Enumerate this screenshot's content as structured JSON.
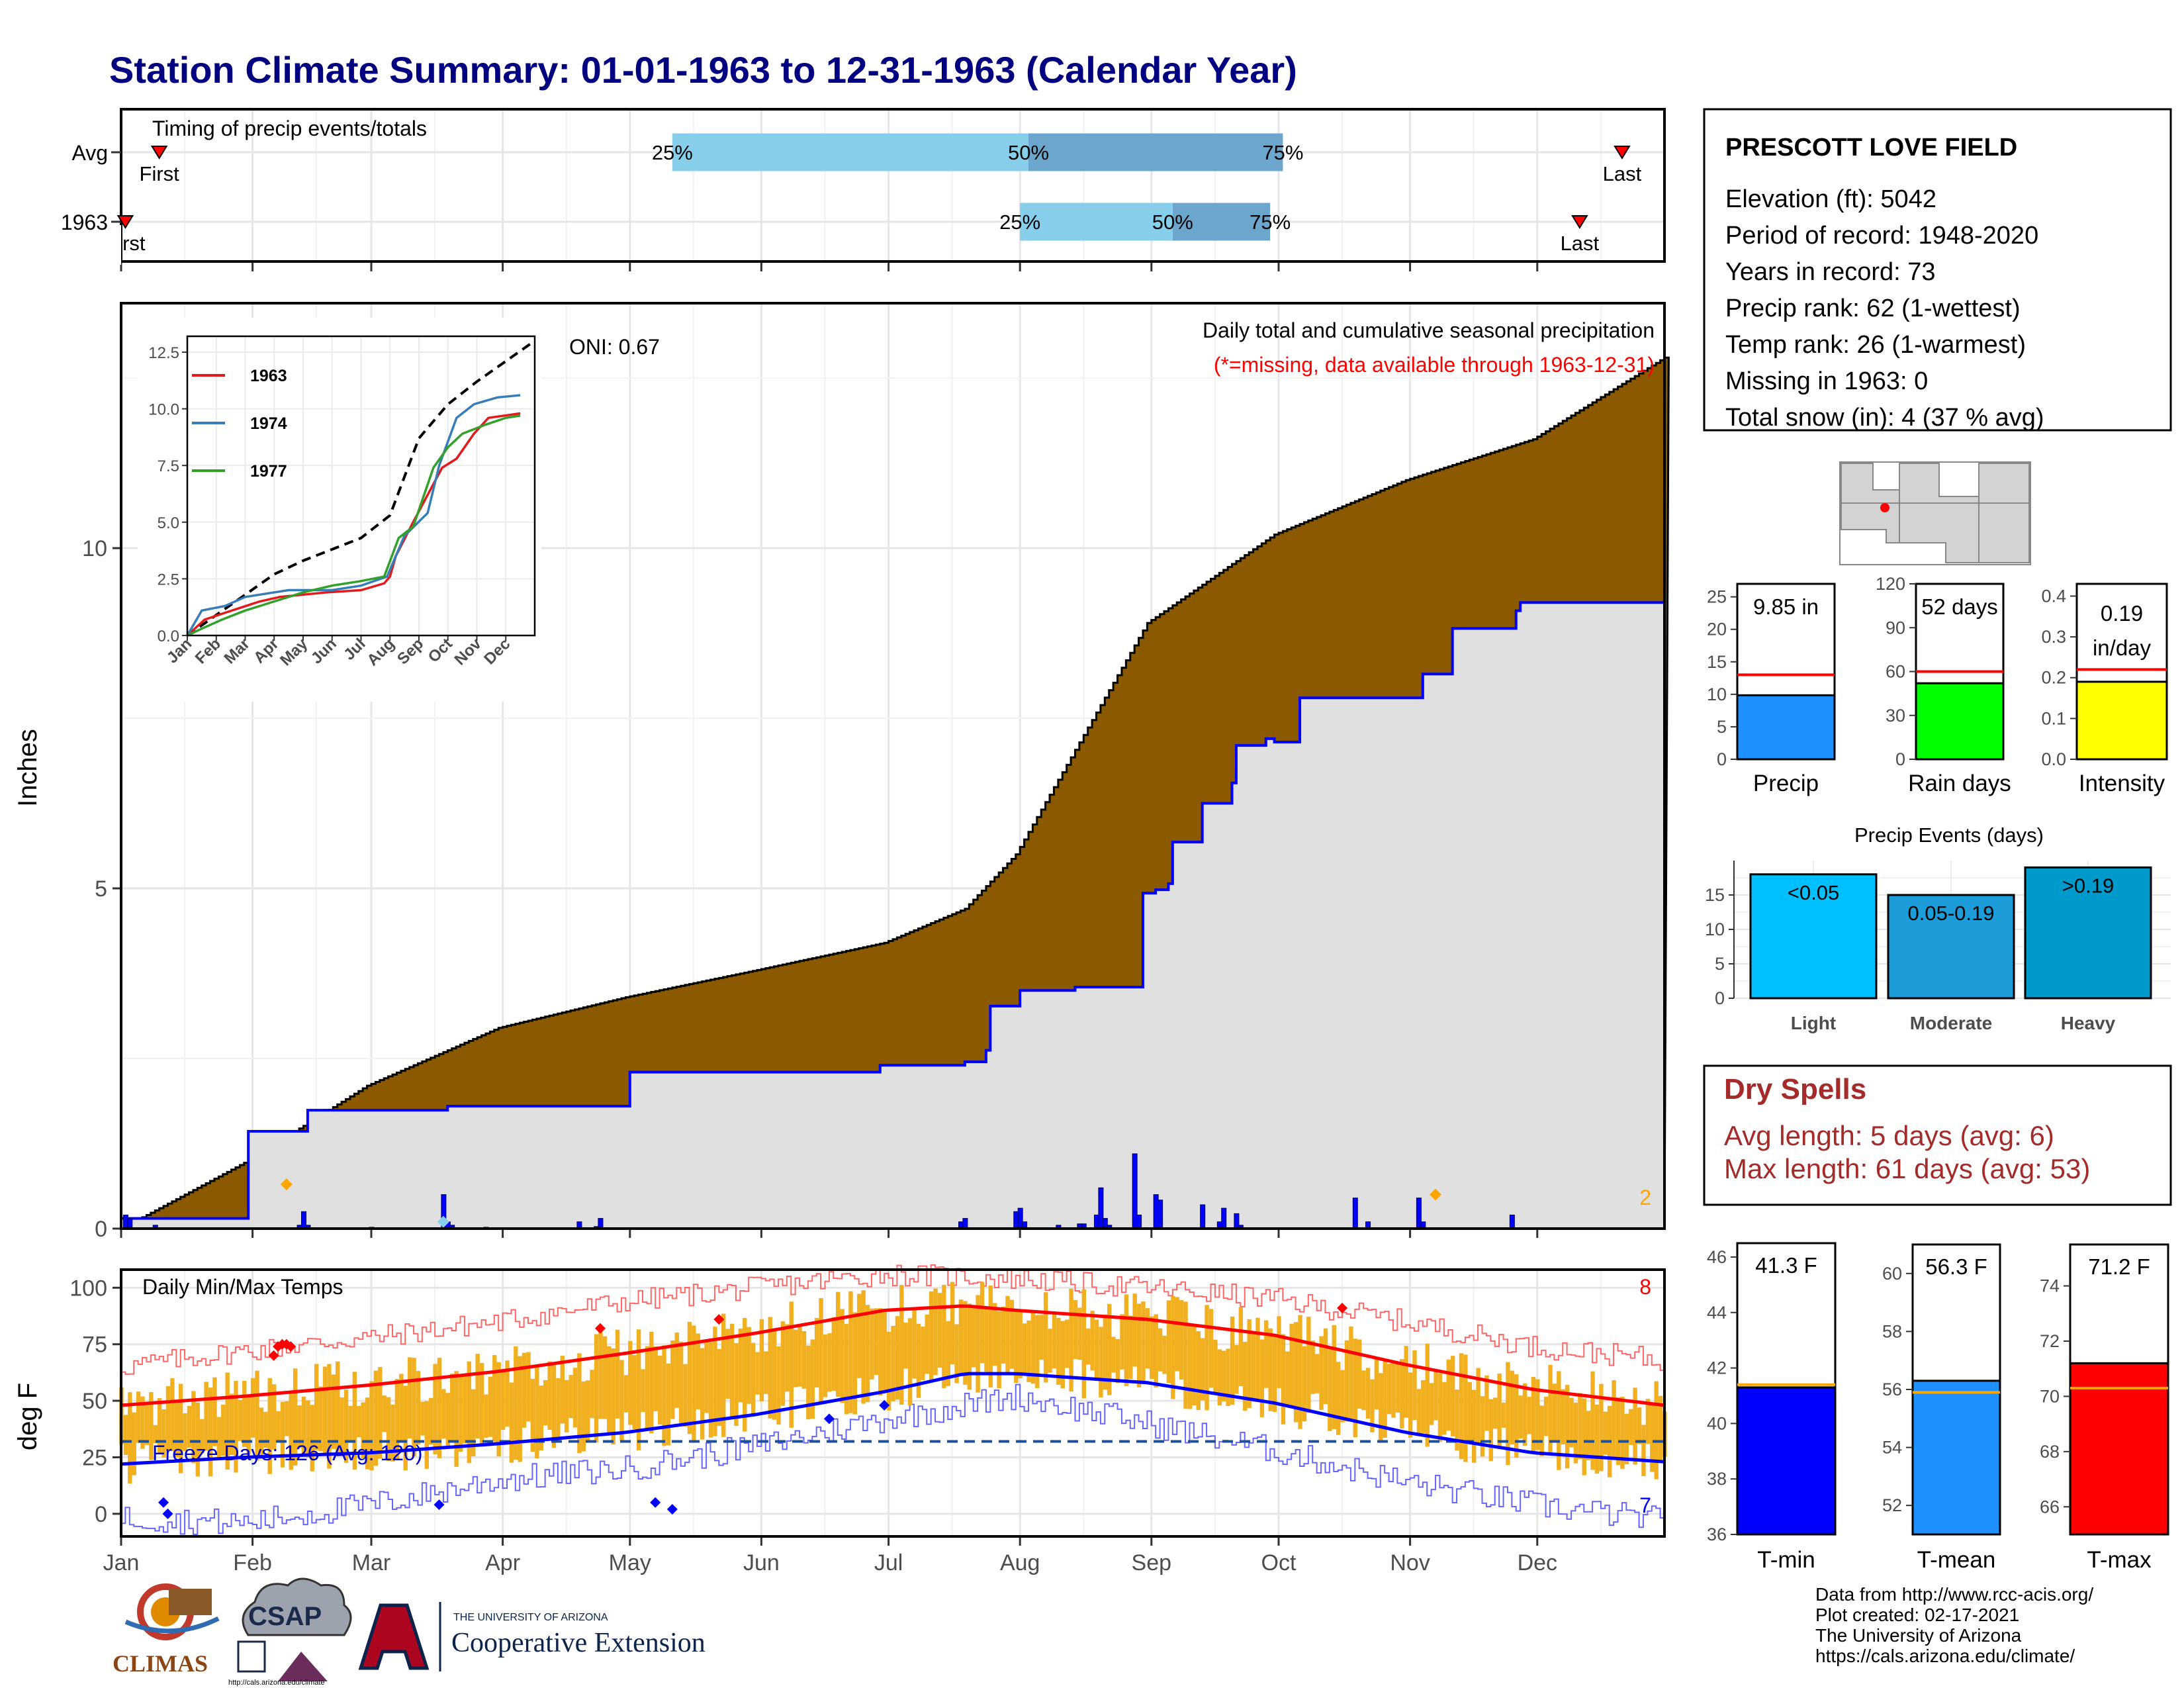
{
  "title": "Station Climate Summary: 01-01-1963 to 12-31-1963 (Calendar Year)",
  "months": [
    "Jan",
    "Feb",
    "Mar",
    "Apr",
    "May",
    "Jun",
    "Jul",
    "Aug",
    "Sep",
    "Oct",
    "Nov",
    "Dec"
  ],
  "colors": {
    "title": "#000080",
    "brown": "#8B5A00",
    "gray_fill": "#E0E0E0",
    "blue_line": "#0000FF",
    "red": "#FF0000",
    "orange_dot": "#FFA500",
    "temp_bar": "#F0B020",
    "light_blue": "#87CEEB",
    "mid_blue": "#6CA6CD",
    "dry_red": "#A52A2A"
  },
  "timing_panel": {
    "heading": "Timing of precip events/totals",
    "rows": [
      {
        "label": "Avg",
        "first": "First",
        "last": "Last",
        "p25": "25%",
        "p50": "50%",
        "p75": "75%"
      },
      {
        "label": "1963",
        "first": "First",
        "last": "Last",
        "p25": "25%",
        "p50": "50%",
        "p75": "75%"
      }
    ],
    "chart_data": {
      "type": "bar",
      "x_units": "day of year",
      "series": [
        {
          "name": "Avg",
          "first": 10,
          "p25": 131,
          "p50": 215,
          "p75": 275,
          "last": 355
        },
        {
          "name": "1963",
          "first": 2,
          "p25": 213,
          "p50": 249,
          "p75": 272,
          "last": 345
        }
      ]
    }
  },
  "precip_panel": {
    "ylabel": "Inches",
    "oni": "ONI: 0.67",
    "caption": "Daily total and cumulative seasonal precipitation",
    "missing_note": "(*=missing, data available through 1963-12-31)",
    "corner_count": "2",
    "y_ticks": [
      "0",
      "5",
      "10"
    ],
    "chart_data": {
      "type": "area",
      "x_units": "day of year",
      "ylim": [
        0,
        13.6
      ],
      "observed_cumulative": [
        [
          1,
          0.15
        ],
        [
          31,
          1.43
        ],
        [
          32,
          1.43
        ],
        [
          44,
          1.43
        ],
        [
          45,
          1.74
        ],
        [
          59,
          1.74
        ],
        [
          77,
          1.74
        ],
        [
          78,
          1.8
        ],
        [
          95,
          1.8
        ],
        [
          120,
          1.8
        ],
        [
          121,
          2.3
        ],
        [
          180,
          2.4
        ],
        [
          200,
          2.45
        ],
        [
          205,
          2.62
        ],
        [
          206,
          3.27
        ],
        [
          212,
          3.27
        ],
        [
          213,
          3.5
        ],
        [
          226,
          3.55
        ],
        [
          241,
          3.55
        ],
        [
          242,
          4.93
        ],
        [
          245,
          4.98
        ],
        [
          248,
          5.07
        ],
        [
          249,
          5.68
        ],
        [
          255,
          5.68
        ],
        [
          256,
          6.25
        ],
        [
          263,
          6.55
        ],
        [
          264,
          7.1
        ],
        [
          271,
          7.2
        ],
        [
          273,
          7.15
        ],
        [
          279,
          7.8
        ],
        [
          307,
          7.8
        ],
        [
          308,
          8.15
        ],
        [
          315,
          8.82
        ],
        [
          330,
          9.08
        ],
        [
          331,
          9.2
        ],
        [
          365,
          9.82
        ]
      ],
      "average_cumulative": [
        [
          1,
          0.0
        ],
        [
          31,
          1.0
        ],
        [
          59,
          2.1
        ],
        [
          90,
          2.95
        ],
        [
          120,
          3.4
        ],
        [
          151,
          3.8
        ],
        [
          181,
          4.2
        ],
        [
          200,
          4.7
        ],
        [
          212,
          5.5
        ],
        [
          243,
          8.9
        ],
        [
          273,
          10.2
        ],
        [
          304,
          11.0
        ],
        [
          334,
          11.6
        ],
        [
          365,
          12.8
        ]
      ],
      "daily_bars": [
        [
          2,
          0.2
        ],
        [
          3,
          0.15
        ],
        [
          9,
          0.05
        ],
        [
          43,
          0.05
        ],
        [
          44,
          0.25
        ],
        [
          45,
          0.05
        ],
        [
          60,
          0.02
        ],
        [
          77,
          0.5
        ],
        [
          78,
          0.1
        ],
        [
          79,
          0.05
        ],
        [
          87,
          0.02
        ],
        [
          109,
          0.1
        ],
        [
          113,
          0.03
        ],
        [
          114,
          0.15
        ],
        [
          199,
          0.1
        ],
        [
          200,
          0.15
        ],
        [
          212,
          0.25
        ],
        [
          213,
          0.3
        ],
        [
          214,
          0.1
        ],
        [
          222,
          0.05
        ],
        [
          227,
          0.07
        ],
        [
          228,
          0.07
        ],
        [
          231,
          0.2
        ],
        [
          232,
          0.6
        ],
        [
          233,
          0.15
        ],
        [
          234,
          0.05
        ],
        [
          240,
          1.1
        ],
        [
          241,
          0.2
        ],
        [
          245,
          0.5
        ],
        [
          246,
          0.42
        ],
        [
          256,
          0.35
        ],
        [
          260,
          0.1
        ],
        [
          261,
          0.3
        ],
        [
          264,
          0.22
        ],
        [
          265,
          0.05
        ],
        [
          292,
          0.45
        ],
        [
          295,
          0.1
        ],
        [
          307,
          0.45
        ],
        [
          308,
          0.1
        ],
        [
          329,
          0.2
        ]
      ],
      "markers": [
        [
          40,
          0.65,
          "orange"
        ],
        [
          77,
          0.1,
          "lightblue"
        ],
        [
          311,
          0.5,
          "orange"
        ]
      ]
    }
  },
  "inset_panel": {
    "y_ticks": [
      "0.0",
      "2.5",
      "5.0",
      "7.5",
      "10.0",
      "12.5"
    ],
    "x_ticks": [
      "Jan",
      "Feb",
      "Mar",
      "Apr",
      "May",
      "Jun",
      "Jul",
      "Aug",
      "Sep",
      "Oct",
      "Nov",
      "Dec"
    ],
    "legend": [
      {
        "name": "1963",
        "color": "#E31A1C"
      },
      {
        "name": "1974",
        "color": "#377EB8"
      },
      {
        "name": "1977",
        "color": "#33A02C"
      }
    ],
    "chart_data": {
      "type": "line",
      "x_units": "month (1=Jan)",
      "ylim": [
        0,
        13
      ],
      "series": [
        {
          "name": "average",
          "style": "dashed",
          "color": "#000000",
          "points": [
            [
              1,
              0.0
            ],
            [
              2,
              0.9
            ],
            [
              3,
              1.8
            ],
            [
              4,
              2.7
            ],
            [
              5,
              3.3
            ],
            [
              6,
              3.8
            ],
            [
              7,
              4.3
            ],
            [
              8,
              5.3
            ],
            [
              9,
              8.7
            ],
            [
              10,
              10.2
            ],
            [
              11,
              11.2
            ],
            [
              12,
              12.1
            ],
            [
              13,
              13.0
            ]
          ]
        },
        {
          "name": "1963",
          "color": "#E31A1C",
          "points": [
            [
              1,
              0.0
            ],
            [
              1.6,
              0.7
            ],
            [
              2.3,
              1.0
            ],
            [
              3.5,
              1.5
            ],
            [
              4.2,
              1.7
            ],
            [
              5.8,
              1.9
            ],
            [
              7.0,
              2.0
            ],
            [
              7.8,
              2.3
            ],
            [
              8.0,
              2.6
            ],
            [
              8.2,
              3.5
            ],
            [
              8.8,
              5.0
            ],
            [
              9.3,
              6.2
            ],
            [
              9.8,
              7.4
            ],
            [
              10.3,
              7.8
            ],
            [
              10.9,
              8.9
            ],
            [
              11.4,
              9.6
            ],
            [
              12.5,
              9.8
            ]
          ]
        },
        {
          "name": "1974",
          "color": "#377EB8",
          "points": [
            [
              1,
              0.0
            ],
            [
              1.5,
              1.1
            ],
            [
              2.3,
              1.3
            ],
            [
              3.0,
              1.7
            ],
            [
              4.5,
              2.0
            ],
            [
              6.0,
              2.0
            ],
            [
              7.0,
              2.2
            ],
            [
              7.9,
              2.6
            ],
            [
              8.5,
              4.4
            ],
            [
              9.3,
              5.4
            ],
            [
              9.7,
              7.5
            ],
            [
              10.3,
              9.6
            ],
            [
              10.9,
              10.2
            ],
            [
              11.7,
              10.5
            ],
            [
              12.5,
              10.6
            ]
          ]
        },
        {
          "name": "1977",
          "color": "#33A02C",
          "points": [
            [
              1,
              0.0
            ],
            [
              1.5,
              0.3
            ],
            [
              2.2,
              0.7
            ],
            [
              3.0,
              1.1
            ],
            [
              4.0,
              1.5
            ],
            [
              5.0,
              1.9
            ],
            [
              6.0,
              2.2
            ],
            [
              7.0,
              2.4
            ],
            [
              7.8,
              2.6
            ],
            [
              8.3,
              4.3
            ],
            [
              8.8,
              4.8
            ],
            [
              9.5,
              7.4
            ],
            [
              10.0,
              8.3
            ],
            [
              10.5,
              8.9
            ],
            [
              11.3,
              9.3
            ],
            [
              12.0,
              9.6
            ],
            [
              12.5,
              9.7
            ]
          ]
        }
      ]
    }
  },
  "temp_panel": {
    "ylabel": "deg F",
    "heading": "Daily Min/Max Temps",
    "freeze_text": "Freeze Days: 126 (Avg: 120)",
    "count_top": "8",
    "count_bottom": "7",
    "y_ticks": [
      "0",
      "25",
      "50",
      "75",
      "100"
    ],
    "chart_data": {
      "type": "line",
      "x_units": "day of year",
      "ylim": [
        -10,
        108
      ],
      "freeze_line": 32,
      "avg_max": [
        [
          1,
          48
        ],
        [
          30,
          52
        ],
        [
          60,
          57
        ],
        [
          90,
          63
        ],
        [
          120,
          71
        ],
        [
          151,
          80
        ],
        [
          181,
          90
        ],
        [
          200,
          92
        ],
        [
          212,
          90
        ],
        [
          243,
          86
        ],
        [
          273,
          79
        ],
        [
          304,
          66
        ],
        [
          334,
          55
        ],
        [
          365,
          48
        ]
      ],
      "avg_min": [
        [
          1,
          22
        ],
        [
          30,
          25
        ],
        [
          60,
          27
        ],
        [
          90,
          31
        ],
        [
          120,
          36
        ],
        [
          151,
          44
        ],
        [
          181,
          54
        ],
        [
          200,
          62
        ],
        [
          212,
          62
        ],
        [
          243,
          58
        ],
        [
          273,
          49
        ],
        [
          304,
          36
        ],
        [
          334,
          27
        ],
        [
          365,
          23
        ]
      ],
      "record_high": [
        [
          1,
          65
        ],
        [
          30,
          72
        ],
        [
          60,
          78
        ],
        [
          90,
          85
        ],
        [
          120,
          94
        ],
        [
          151,
          100
        ],
        [
          181,
          106
        ],
        [
          212,
          104
        ],
        [
          243,
          100
        ],
        [
          273,
          95
        ],
        [
          304,
          85
        ],
        [
          334,
          74
        ],
        [
          365,
          68
        ]
      ],
      "record_low": [
        [
          1,
          -2
        ],
        [
          30,
          -4
        ],
        [
          60,
          4
        ],
        [
          90,
          15
        ],
        [
          120,
          20
        ],
        [
          151,
          30
        ],
        [
          181,
          42
        ],
        [
          212,
          52
        ],
        [
          243,
          40
        ],
        [
          273,
          28
        ],
        [
          304,
          14
        ],
        [
          334,
          4
        ],
        [
          365,
          -3
        ]
      ],
      "red_markers": [
        [
          37,
          70
        ],
        [
          38,
          74
        ],
        [
          39,
          75
        ],
        [
          40,
          75
        ],
        [
          41,
          74
        ],
        [
          114,
          82
        ],
        [
          142,
          86
        ],
        [
          289,
          91
        ]
      ],
      "blue_markers": [
        [
          11,
          5
        ],
        [
          12,
          0
        ],
        [
          76,
          4
        ],
        [
          127,
          5
        ],
        [
          131,
          2
        ],
        [
          168,
          42
        ],
        [
          181,
          48
        ]
      ]
    }
  },
  "station_info": {
    "name": "PRESCOTT LOVE FIELD",
    "lines": [
      "Elevation (ft): 5042",
      "Period of record: 1948-2020",
      "Years in record: 73",
      "Precip rank: 62 (1-wettest)",
      "Temp rank: 26 (1-warmest)",
      "Missing in 1963: 0",
      "Total snow (in): 4 (37 % avg)"
    ]
  },
  "mini_bars": [
    {
      "label": "Precip",
      "value_label": "9.85 in",
      "value": 9.85,
      "avg": 13.0,
      "ymax": 27,
      "ticks": [
        "0",
        "5",
        "10",
        "15",
        "20",
        "25"
      ],
      "tick_values": [
        0,
        5,
        10,
        15,
        20,
        25
      ],
      "color": "#1E90FF"
    },
    {
      "label": "Rain days",
      "value_label": "52 days",
      "value": 52,
      "avg": 60,
      "ymax": 120,
      "ticks": [
        "0",
        "30",
        "60",
        "90",
        "120"
      ],
      "tick_values": [
        0,
        30,
        60,
        90,
        120
      ],
      "color": "#00FF00"
    },
    {
      "label": "Intensity",
      "value_label": "0.19 in/day",
      "value": 0.19,
      "avg": 0.22,
      "ymax": 0.43,
      "ticks": [
        "0.0",
        "0.1",
        "0.2",
        "0.3",
        "0.4"
      ],
      "tick_values": [
        0,
        0.1,
        0.2,
        0.3,
        0.4
      ],
      "color": "#FFFF00"
    }
  ],
  "precip_events": {
    "title": "Precip Events (days)",
    "ticks": [
      "0",
      "5",
      "10",
      "15"
    ],
    "chart_data": {
      "type": "bar",
      "categories": [
        "Light",
        "Moderate",
        "Heavy"
      ],
      "bar_labels": [
        "<0.05",
        "0.05-0.19",
        ">0.19"
      ],
      "values": [
        18,
        15,
        19
      ],
      "ylim": [
        0,
        20
      ]
    }
  },
  "dry_spells": {
    "title": "Dry Spells",
    "avg_line": "Avg length: 5 days (avg: 6)",
    "max_line": "Max length: 61 days (avg: 53)"
  },
  "temp_bars": [
    {
      "label": "T-min",
      "value_label": "41.3 F",
      "value": 41.3,
      "avg": 41.4,
      "ymin": 36,
      "ymax": 46.5,
      "ticks": [
        "36",
        "38",
        "40",
        "42",
        "44",
        "46"
      ],
      "tick_values": [
        36,
        38,
        40,
        42,
        44,
        46
      ],
      "color": "#0000FF"
    },
    {
      "label": "T-mean",
      "value_label": "56.3 F",
      "value": 56.3,
      "avg": 55.9,
      "ymin": 51,
      "ymax": 61,
      "ticks": [
        "52",
        "54",
        "56",
        "58",
        "60"
      ],
      "tick_values": [
        52,
        54,
        56,
        58,
        60
      ],
      "color": "#1E90FF"
    },
    {
      "label": "T-max",
      "value_label": "71.2 F",
      "value": 71.2,
      "avg": 70.3,
      "ymin": 65,
      "ymax": 75.5,
      "ticks": [
        "66",
        "68",
        "70",
        "72",
        "74"
      ],
      "tick_values": [
        66,
        68,
        70,
        72,
        74
      ],
      "color": "#FF0000"
    }
  ],
  "footer": {
    "lines": [
      "Data from http://www.rcc-acis.org/",
      "Plot created: 02-17-2021",
      "The University of Arizona",
      "https://cals.arizona.edu/climate/"
    ],
    "climas": "CLIMAS",
    "csap": "CSAP",
    "csap_url": "http://cals.arizona.edu/climate",
    "ua_small": "THE UNIVERSITY OF ARIZONA",
    "ua_large": "Cooperative Extension"
  }
}
